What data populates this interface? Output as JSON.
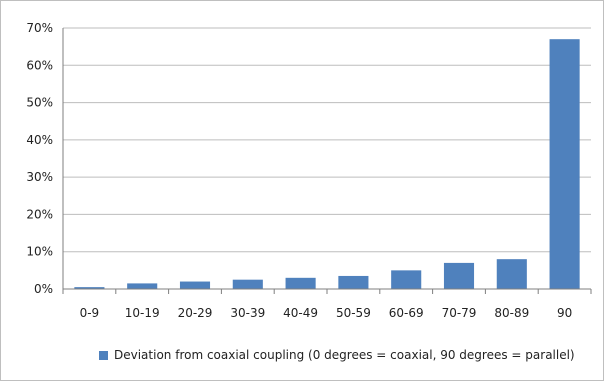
{
  "chart_data": {
    "type": "bar",
    "categories": [
      "0-9",
      "10-19",
      "20-29",
      "30-39",
      "40-49",
      "50-59",
      "60-69",
      "70-79",
      "80-89",
      "90"
    ],
    "series": [
      {
        "name": "Deviation from coaxial coupling (0 degrees = coaxial, 90 degrees = parallel)",
        "values": [
          0.5,
          1.5,
          2.0,
          2.5,
          3.0,
          3.5,
          5.0,
          7.0,
          8.0,
          67.0
        ]
      }
    ],
    "y_ticks": [
      "0%",
      "10%",
      "20%",
      "30%",
      "40%",
      "50%",
      "60%",
      "70%"
    ],
    "ylim": [
      0,
      70
    ],
    "grid": true,
    "legend_position": "bottom",
    "colors": {
      "bar": "#4f81bd",
      "grid": "#bdbdbd",
      "axis": "#7f7f7f",
      "text": "#222222"
    }
  }
}
